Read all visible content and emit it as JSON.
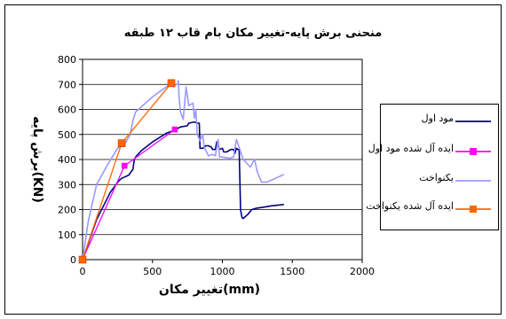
{
  "chart_data": {
    "type": "line",
    "title": "منحنی برش پایه-تغییر مکان بام قاب ۱۲ طبقه",
    "xlabel": "تغییر مکان(mm)",
    "ylabel": "برش پایه(KN)",
    "xlim": [
      0,
      2000
    ],
    "ylim": [
      0,
      800
    ],
    "xticks": [
      "0",
      "500",
      "1000",
      "1500",
      "2000"
    ],
    "yticks": [
      "0",
      "100",
      "200",
      "300",
      "400",
      "500",
      "600",
      "700",
      "800"
    ],
    "grid": "horizontal",
    "legend": "right",
    "series": [
      {
        "name": "مود اول",
        "color": "#000080",
        "marker": "none",
        "x": [
          0,
          100,
          200,
          260,
          280,
          300,
          320,
          335,
          345,
          360,
          370,
          380,
          420,
          500,
          600,
          650,
          700,
          750,
          760,
          800,
          820,
          835,
          840,
          860,
          880,
          900,
          920,
          930,
          950,
          960,
          980,
          1000,
          1010,
          1030,
          1060,
          1080,
          1090,
          1100,
          1110,
          1120,
          1130,
          1140,
          1145,
          1150,
          1160,
          1180,
          1210,
          1240,
          1300,
          1350,
          1440
        ],
        "y": [
          0,
          160,
          270,
          315,
          325,
          330,
          335,
          340,
          350,
          360,
          400,
          410,
          435,
          470,
          505,
          515,
          530,
          535,
          545,
          550,
          545,
          545,
          445,
          445,
          455,
          455,
          450,
          440,
          440,
          470,
          440,
          445,
          430,
          430,
          440,
          440,
          425,
          445,
          440,
          440,
          200,
          170,
          165,
          165,
          170,
          180,
          200,
          205,
          210,
          215,
          220
        ]
      },
      {
        "name": "ایده آل شده مود اول",
        "color": "#ff00ff",
        "marker": "square",
        "x": [
          0,
          300,
          660
        ],
        "y": [
          0,
          375,
          520
        ]
      },
      {
        "name": "یکنواخت",
        "color": "#9999ff",
        "marker": "none",
        "x": [
          0,
          40,
          100,
          180,
          250,
          300,
          340,
          360,
          380,
          400,
          450,
          500,
          560,
          600,
          630,
          650,
          670,
          680,
          685,
          690,
          700,
          720,
          740,
          760,
          790,
          800,
          810,
          820,
          840,
          860,
          870,
          900,
          930,
          950,
          970,
          980,
          1000,
          1050,
          1080,
          1100,
          1150,
          1200,
          1230,
          1250,
          1280,
          1320,
          1380,
          1440
        ],
        "y": [
          0,
          150,
          300,
          380,
          445,
          460,
          500,
          555,
          590,
          600,
          625,
          650,
          675,
          690,
          700,
          690,
          700,
          700,
          715,
          650,
          590,
          560,
          690,
          615,
          625,
          565,
          600,
          500,
          475,
          500,
          450,
          415,
          420,
          415,
          480,
          410,
          410,
          405,
          410,
          480,
          400,
          370,
          400,
          350,
          310,
          310,
          325,
          340
        ]
      },
      {
        "name": "ایده آل شده یکنواخت",
        "color": "#ff6600",
        "marker": "square",
        "x": [
          0,
          280,
          635
        ],
        "y": [
          0,
          465,
          705
        ]
      }
    ]
  }
}
